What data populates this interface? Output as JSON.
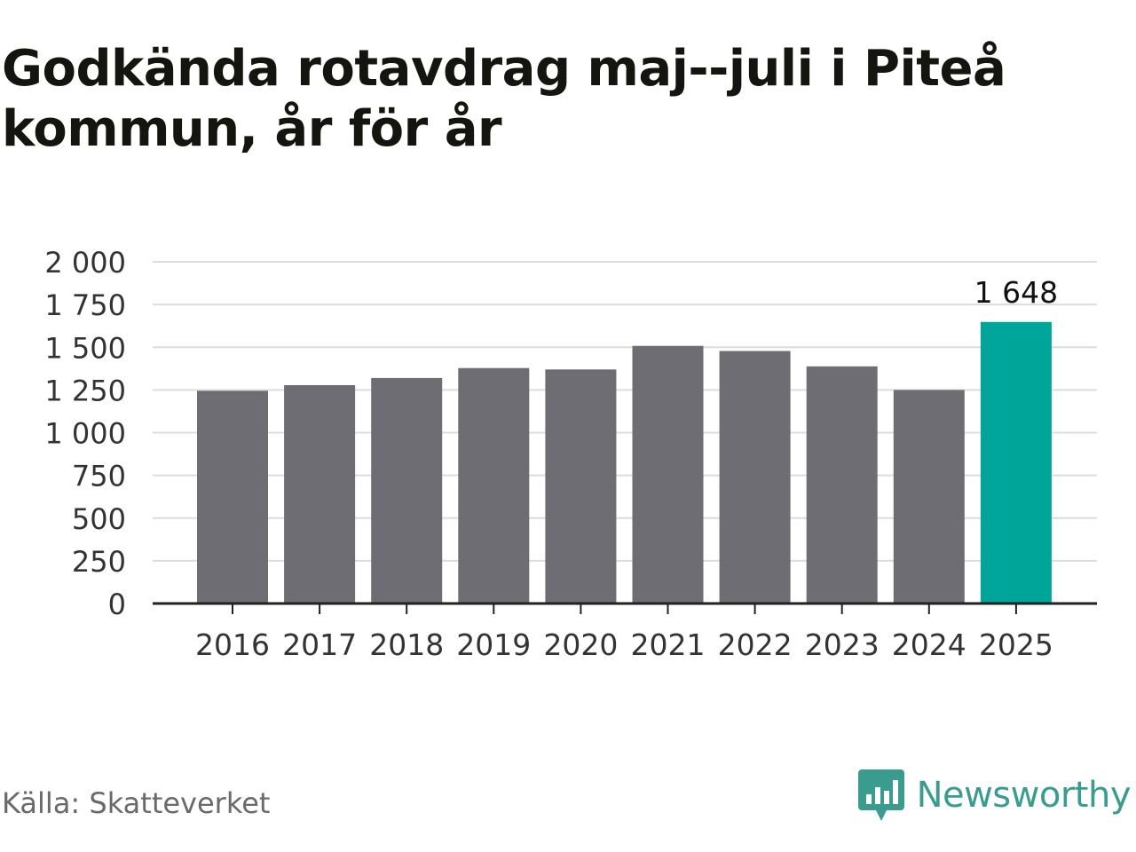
{
  "chart_data": {
    "type": "bar",
    "title": "Godkända rotavdrag maj--juli i Piteå kommun, år för år",
    "categories": [
      "2016",
      "2017",
      "2018",
      "2019",
      "2020",
      "2021",
      "2022",
      "2023",
      "2024",
      "2025"
    ],
    "values": [
      1245,
      1278,
      1320,
      1378,
      1370,
      1508,
      1478,
      1388,
      1250,
      1648
    ],
    "highlight_index": 9,
    "data_labels": [
      {
        "index": 9,
        "text": "1 648"
      }
    ],
    "ylim": [
      0,
      2000
    ],
    "yticks": [
      0,
      250,
      500,
      750,
      1000,
      1250,
      1500,
      1750,
      2000
    ],
    "ytick_labels": [
      "0",
      "250",
      "500",
      "750",
      "1 000",
      "1 250",
      "1 500",
      "1 750",
      "2 000"
    ],
    "xlabel": "",
    "ylabel": "",
    "grid": true,
    "legend": "none",
    "colors": {
      "bar": "#6e6d73",
      "highlight": "#00a59a",
      "grid": "#dcdcdc",
      "axis": "#222222",
      "tick_text": "#333333",
      "label_text": "#111111"
    }
  },
  "footer": {
    "source": "Källa: Skatteverket",
    "brand": "Newsworthy",
    "brand_icon": "newsworthy-logo-icon",
    "brand_color": "#3a9c8e"
  }
}
